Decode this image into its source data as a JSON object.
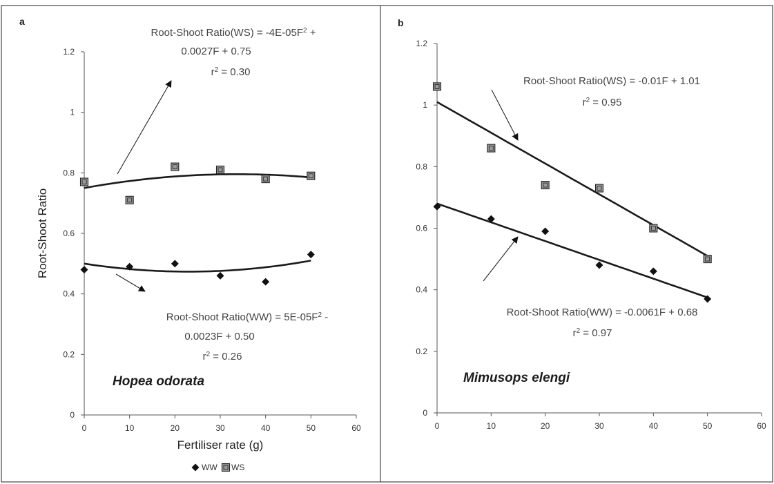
{
  "chart_data": [
    {
      "type": "scatter",
      "panel_label": "a",
      "species": "Hopea odorata",
      "xlabel": "Fertiliser rate (g)",
      "ylabel": "Root-Shoot Ratio",
      "xlim": [
        0,
        60
      ],
      "ylim": [
        0,
        1.2
      ],
      "x_ticks": [
        "0",
        "10",
        "20",
        "30",
        "40",
        "50",
        "60"
      ],
      "y_ticks": [
        "0",
        "0.2",
        "0.4",
        "0.6",
        "0.8",
        "1",
        "1.2"
      ],
      "grid": false,
      "series": [
        {
          "name": "WW",
          "marker": "diamond",
          "x": [
            0,
            10,
            20,
            30,
            40,
            50
          ],
          "values": [
            0.48,
            0.49,
            0.5,
            0.46,
            0.44,
            0.53
          ],
          "fit": {
            "kind": "poly2",
            "coef": [
              5e-05,
              -0.0023,
              0.5
            ]
          }
        },
        {
          "name": "WS",
          "marker": "square",
          "x": [
            0,
            10,
            20,
            30,
            40,
            50
          ],
          "values": [
            0.77,
            0.71,
            0.82,
            0.81,
            0.78,
            0.79
          ],
          "fit": {
            "kind": "poly2",
            "coef": [
              -4e-05,
              0.0027,
              0.75
            ]
          }
        }
      ],
      "equations": {
        "ws": {
          "line1": "Root-Shoot Ratio(WS) = -4E-05F",
          "sup1": "2",
          "line1_tail": " +",
          "line2": "0.0027F + 0.75",
          "r_label": "r",
          "r_sup": "2",
          "r_value": " = 0.30"
        },
        "ww": {
          "line1": "Root-Shoot Ratio(WW) = 5E-05F",
          "sup1": "2",
          "line1_tail": " -",
          "line2": "0.0023F + 0.50",
          "r_label": "r",
          "r_sup": "2",
          "r_value": " = 0.26"
        }
      },
      "legend": {
        "position": "bottom",
        "items": [
          "WW",
          "WS"
        ]
      }
    },
    {
      "type": "scatter",
      "panel_label": "b",
      "species": "Mimusops elengi",
      "xlabel": "",
      "ylabel": "",
      "xlim": [
        0,
        60
      ],
      "ylim": [
        0,
        1.2
      ],
      "x_ticks": [
        "0",
        "10",
        "20",
        "30",
        "40",
        "50",
        "60"
      ],
      "y_ticks": [
        "0",
        "0.2",
        "0.4",
        "0.6",
        "0.8",
        "1",
        "1.2"
      ],
      "grid": false,
      "series": [
        {
          "name": "WW",
          "marker": "diamond",
          "x": [
            0,
            10,
            20,
            30,
            40,
            50
          ],
          "values": [
            0.67,
            0.63,
            0.59,
            0.48,
            0.46,
            0.37
          ],
          "fit": {
            "kind": "linear",
            "coef": [
              -0.0061,
              0.68
            ]
          }
        },
        {
          "name": "WS",
          "marker": "square",
          "x": [
            0,
            10,
            20,
            30,
            40,
            50
          ],
          "values": [
            1.06,
            0.86,
            0.74,
            0.73,
            0.6,
            0.5
          ],
          "fit": {
            "kind": "linear",
            "coef": [
              -0.01,
              1.01
            ]
          }
        }
      ],
      "equations": {
        "ws": {
          "line1": "Root-Shoot Ratio(WS) = -0.01F + 1.01",
          "r_label": "r",
          "r_sup": "2",
          "r_value": " = 0.95"
        },
        "ww": {
          "line1": "Root-Shoot Ratio(WW) = -0.0061F + 0.68",
          "r_label": "r",
          "r_sup": "2",
          "r_value": " = 0.97"
        }
      }
    }
  ],
  "colors": {
    "line": "#1a1a1a",
    "axis": "#555555",
    "text": "#333333",
    "marker_fill": "#9a9a9a"
  }
}
